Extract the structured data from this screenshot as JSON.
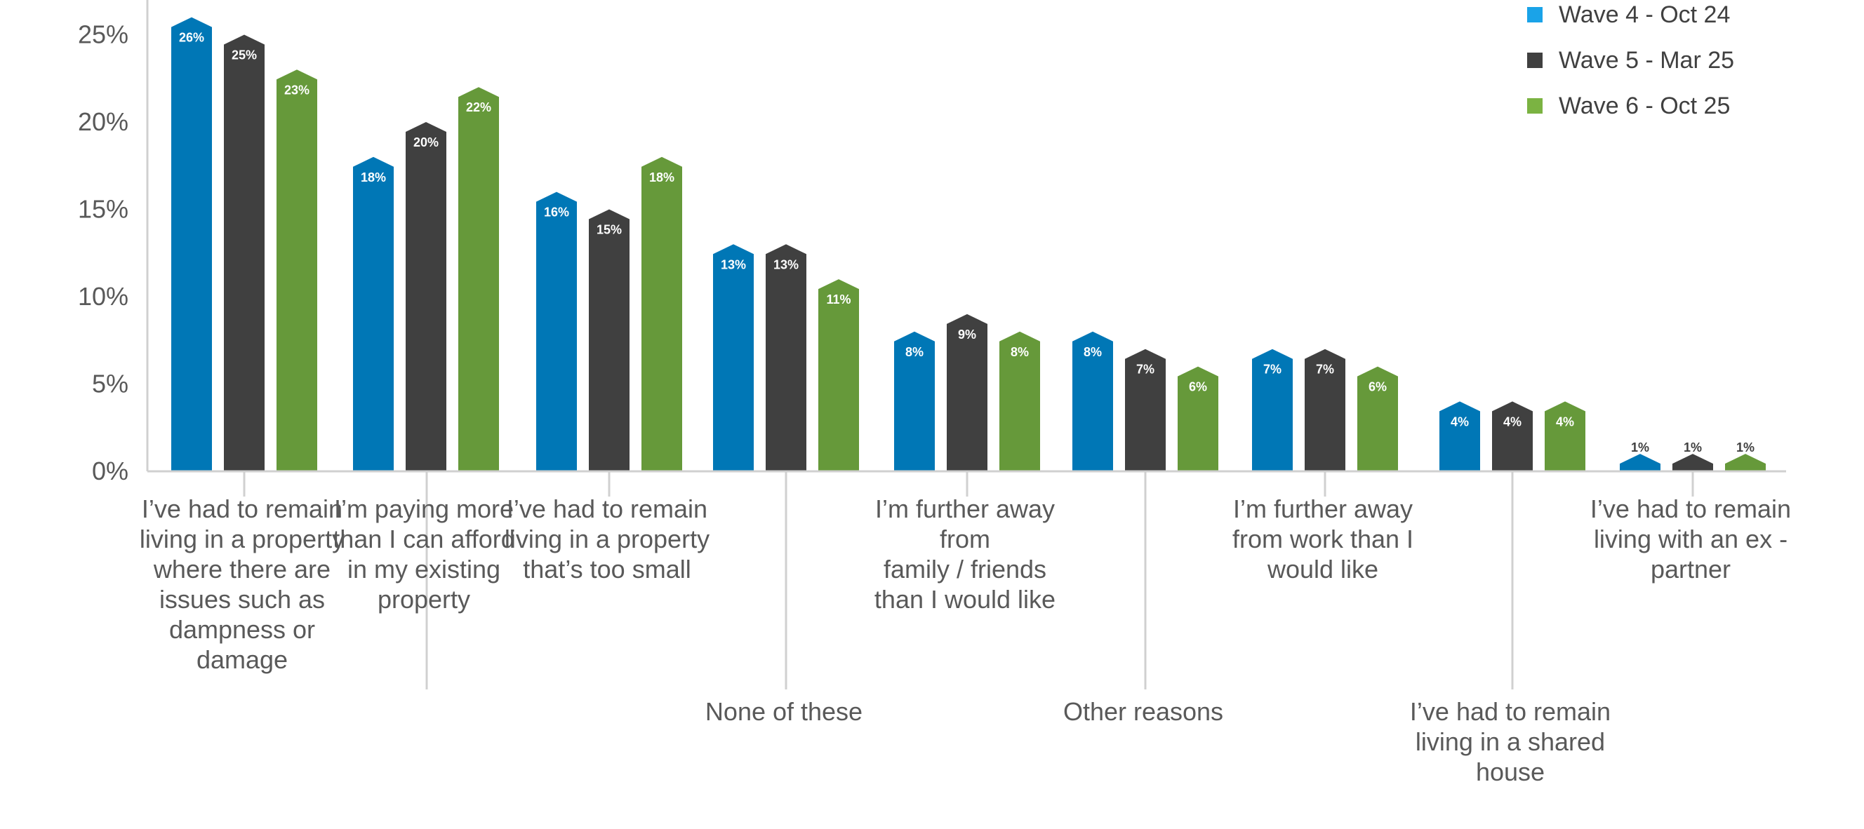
{
  "chart_data": {
    "type": "bar",
    "ylim": [
      0,
      26
    ],
    "yticks": [
      "0%",
      "5%",
      "10%",
      "15%",
      "20%",
      "25%"
    ],
    "ytick_values": [
      0,
      5,
      10,
      15,
      20,
      25
    ],
    "legend_position": "top-right",
    "grid": false,
    "categories": [
      [
        "I’ve had to remain",
        "living in a property",
        "where there are",
        "issues such as",
        "dampness or",
        "damage"
      ],
      [
        "I’m paying more",
        "than I can afford",
        "in my existing",
        "property"
      ],
      [
        "I’ve had to remain",
        "living in a property",
        "that’s too small"
      ],
      [
        "None of these"
      ],
      [
        "I’m further away",
        "from",
        "family / friends",
        "than I would like"
      ],
      [
        "Other reasons"
      ],
      [
        "I’m further away",
        "from work than I",
        "would like"
      ],
      [
        "I’ve had to remain",
        "living in a shared",
        "house"
      ],
      [
        "I’ve had to remain",
        "living with an ex -",
        "partner"
      ]
    ],
    "series": [
      {
        "name": "Wave 4 - Oct 24",
        "color": "#0077B6",
        "values": [
          26,
          18,
          16,
          13,
          8,
          8,
          7,
          4,
          1
        ],
        "labels": [
          "26%",
          "18%",
          "16%",
          "13%",
          "8%",
          "8%",
          "7%",
          "4%",
          "1%"
        ]
      },
      {
        "name": "Wave 5 - Mar 25",
        "color": "#404040",
        "values": [
          25,
          20,
          15,
          13,
          9,
          7,
          7,
          4,
          1
        ],
        "labels": [
          "25%",
          "20%",
          "15%",
          "13%",
          "9%",
          "7%",
          "7%",
          "4%",
          "1%"
        ]
      },
      {
        "name": "Wave 6 - Oct 25",
        "color": "#66993A",
        "values": [
          23,
          22,
          18,
          11,
          8,
          6,
          6,
          4,
          1
        ],
        "labels": [
          "23%",
          "22%",
          "18%",
          "11%",
          "8%",
          "6%",
          "6%",
          "4%",
          "1%"
        ]
      }
    ],
    "legend_swatch_colors": [
      "#1AA3E8",
      "#404040",
      "#7BB342"
    ]
  }
}
